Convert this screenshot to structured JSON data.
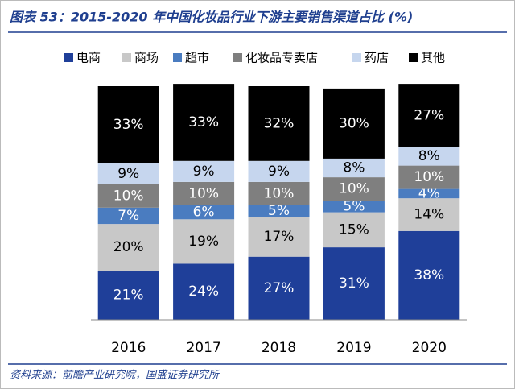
{
  "chart_data": {
    "type": "stacked_bar",
    "title": "图表 53：2015-2020 年中国化妆品行业下游主要销售渠道占比 (%)",
    "source": "资料来源：前瞻产业研究院，国盛证券研究所",
    "categories": [
      "2016",
      "2017",
      "2018",
      "2019",
      "2020"
    ],
    "series": [
      {
        "name": "电商",
        "color": "#1f3f99",
        "values": [
          21,
          24,
          27,
          31,
          38
        ],
        "value_labels": [
          "21%",
          "24%",
          "27%",
          "31%",
          "38%"
        ]
      },
      {
        "name": "商场",
        "color": "#c8c8c8",
        "values": [
          20,
          19,
          17,
          15,
          14
        ],
        "value_labels": [
          "20%",
          "19%",
          "17%",
          "15%",
          "14%"
        ]
      },
      {
        "name": "超市",
        "color": "#4a7cc0",
        "values": [
          7,
          6,
          5,
          5,
          4
        ],
        "value_labels": [
          "7%",
          "6%",
          "5%",
          "5%",
          "4%"
        ]
      },
      {
        "name": "化妆品专卖店",
        "color": "#7f7f7f",
        "values": [
          10,
          10,
          10,
          10,
          10
        ],
        "value_labels": [
          "10%",
          "10%",
          "10%",
          "10%",
          "10%"
        ]
      },
      {
        "name": "药店",
        "color": "#c6d6ee",
        "values": [
          9,
          9,
          9,
          8,
          8
        ],
        "value_labels": [
          "9%",
          "9%",
          "9%",
          "8%",
          "8%"
        ]
      },
      {
        "name": "其他",
        "color": "#000000",
        "values": [
          33,
          33,
          32,
          30,
          27
        ],
        "value_labels": [
          "33%",
          "33%",
          "32%",
          "30%",
          "27%"
        ]
      }
    ]
  }
}
